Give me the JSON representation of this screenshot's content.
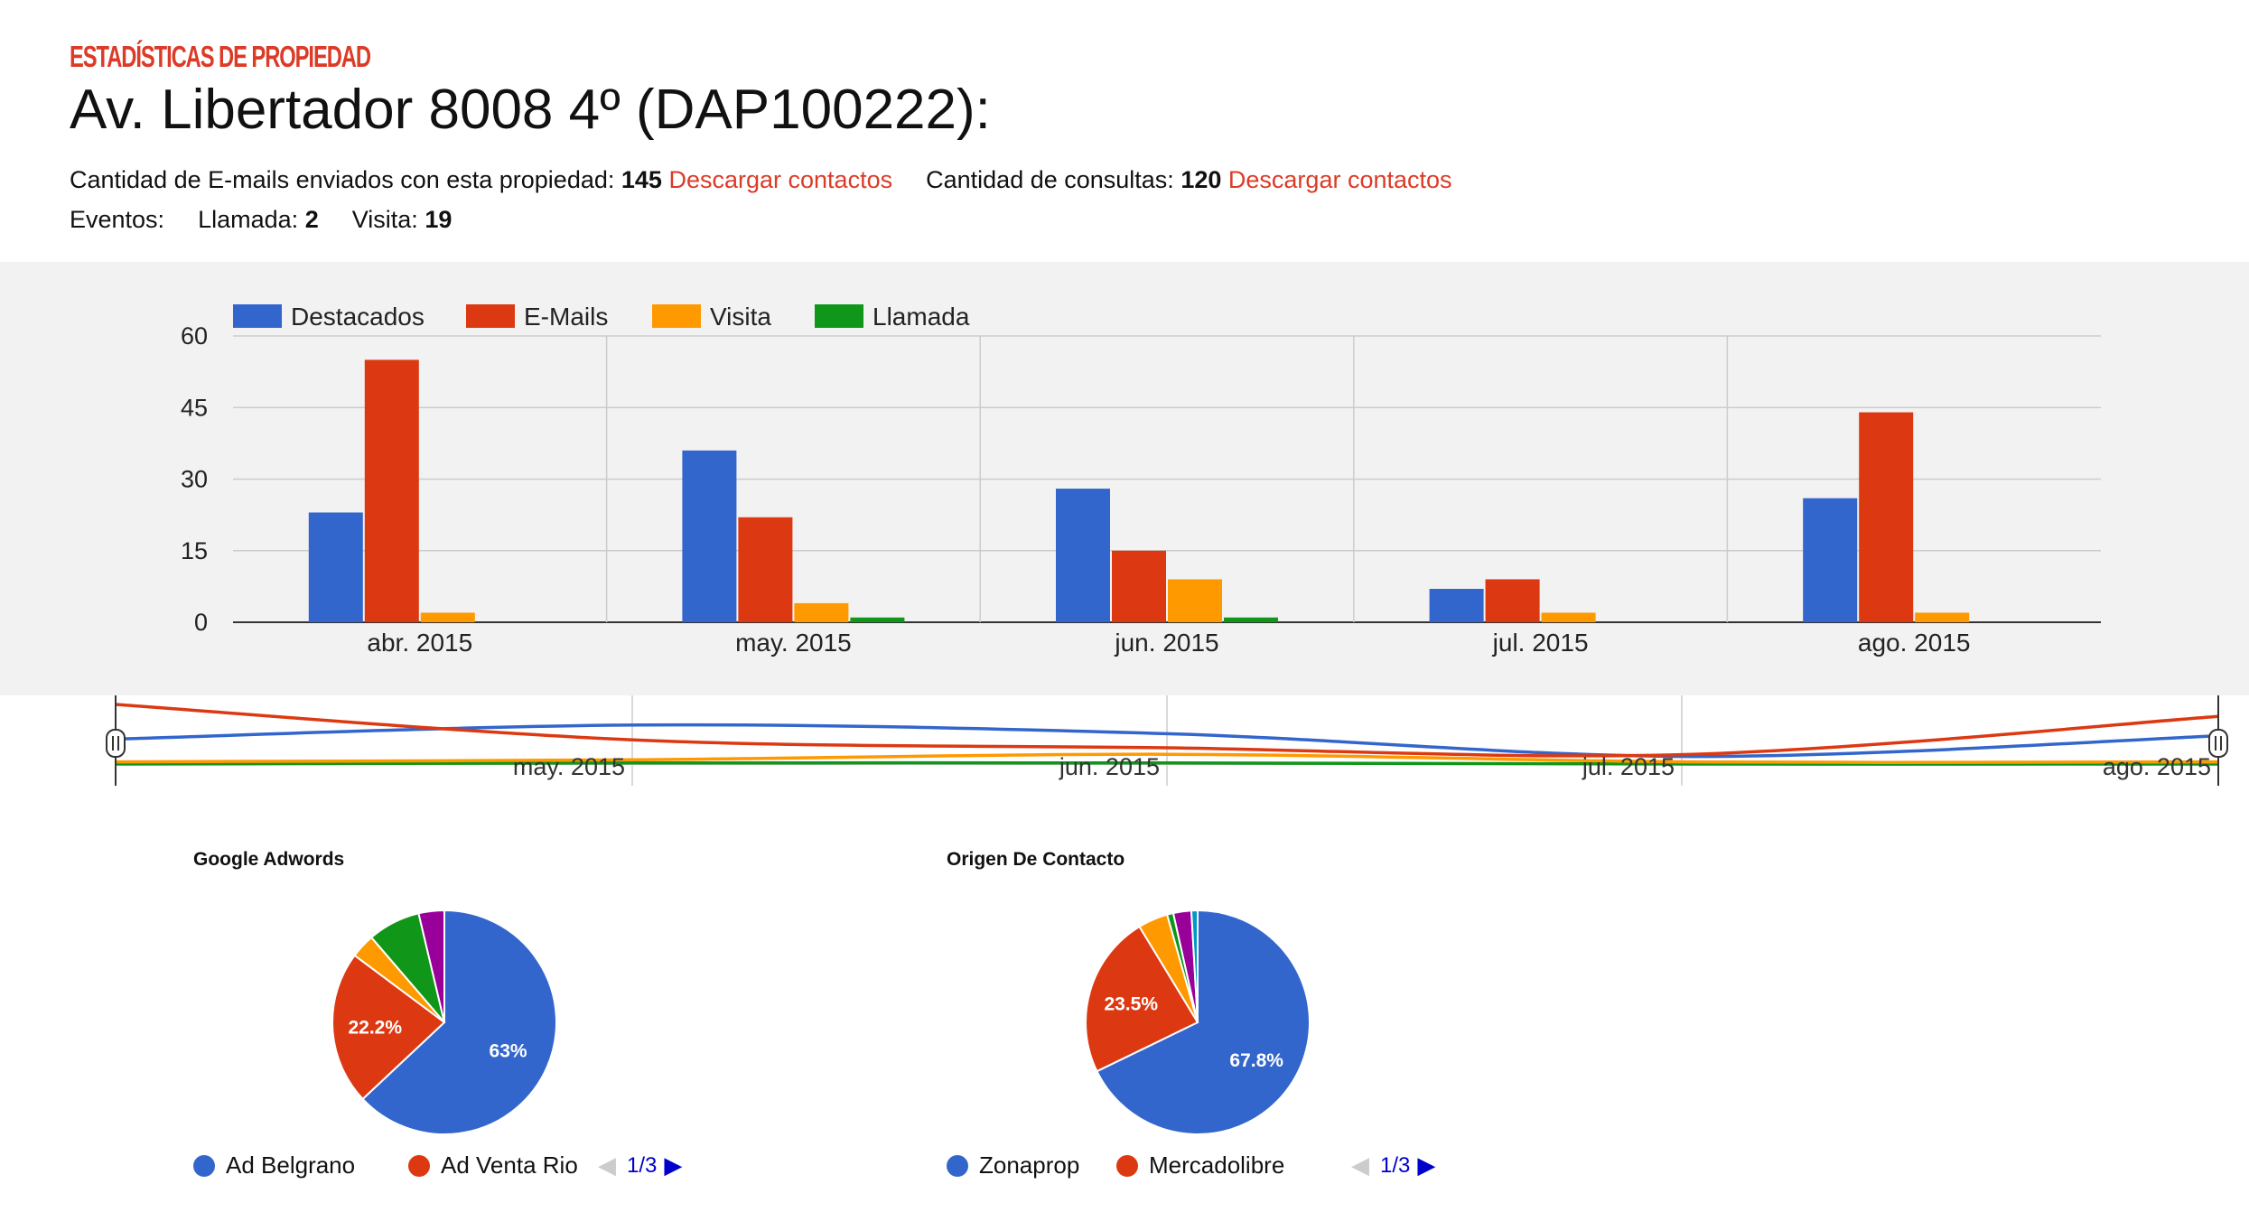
{
  "header": {
    "section_tag": "ESTADÍSTICAS DE PROPIEDAD",
    "title": "Av. Libertador 8008 4º (DAP100222):",
    "emails_label": "Cantidad de E-mails enviados con esta propiedad:",
    "emails_count": "145",
    "download_link_1": "Descargar contactos",
    "queries_label": "Cantidad de consultas:",
    "queries_count": "120",
    "download_link_2": "Descargar contactos",
    "events_label": "Eventos:",
    "calls_label": "Llamada:",
    "calls_count": "2",
    "visits_label": "Visita:",
    "visits_count": "19"
  },
  "colors": {
    "accent": "#dc3b27",
    "destacados": "#3366cc",
    "emails": "#dc3912",
    "visita": "#ff9900",
    "llamada": "#109618",
    "purple": "#990099",
    "teal": "#0099c6",
    "panel_bg": "#f2f2f2"
  },
  "chart_data": [
    {
      "type": "bar",
      "categories": [
        "abr. 2015",
        "may. 2015",
        "jun. 2015",
        "jul. 2015",
        "ago. 2015"
      ],
      "series": [
        {
          "name": "Destacados",
          "values": [
            23,
            36,
            28,
            7,
            26
          ]
        },
        {
          "name": "E-Mails",
          "values": [
            55,
            22,
            15,
            9,
            44
          ]
        },
        {
          "name": "Visita",
          "values": [
            2,
            4,
            9,
            2,
            2
          ]
        },
        {
          "name": "Llamada",
          "values": [
            0,
            1,
            1,
            0,
            0
          ]
        }
      ],
      "yticks": [
        "0",
        "15",
        "30",
        "45",
        "60"
      ],
      "ylim": [
        0,
        60
      ],
      "legend": "top-left",
      "grid": true
    },
    {
      "type": "line",
      "role": "range-selector",
      "tick_labels": [
        "may. 2015",
        "jun. 2015",
        "jul. 2015",
        "ago. 2015"
      ]
    },
    {
      "type": "pie",
      "title": "Google Adwords",
      "slices": [
        {
          "label": "Ad Belgrano",
          "value": 63,
          "color": "#3366cc",
          "label_text": "63%"
        },
        {
          "label": "Ad Venta Rio",
          "value": 22.2,
          "color": "#dc3912",
          "label_text": "22.2%"
        },
        {
          "value": 3.5,
          "color": "#ff9900"
        },
        {
          "value": 7.6,
          "color": "#109618"
        },
        {
          "value": 3.7,
          "color": "#990099"
        }
      ],
      "legend_page": "1/3"
    },
    {
      "type": "pie",
      "title": "Origen De Contacto",
      "slices": [
        {
          "label": "Zonaprop",
          "value": 67.8,
          "color": "#3366cc",
          "label_text": "67.8%"
        },
        {
          "label": "Mercadolibre",
          "value": 23.5,
          "color": "#dc3912",
          "label_text": "23.5%"
        },
        {
          "value": 4.3,
          "color": "#ff9900"
        },
        {
          "value": 0.9,
          "color": "#109618"
        },
        {
          "value": 2.6,
          "color": "#990099"
        },
        {
          "value": 0.9,
          "color": "#0099c6"
        }
      ],
      "legend_page": "1/3"
    }
  ]
}
